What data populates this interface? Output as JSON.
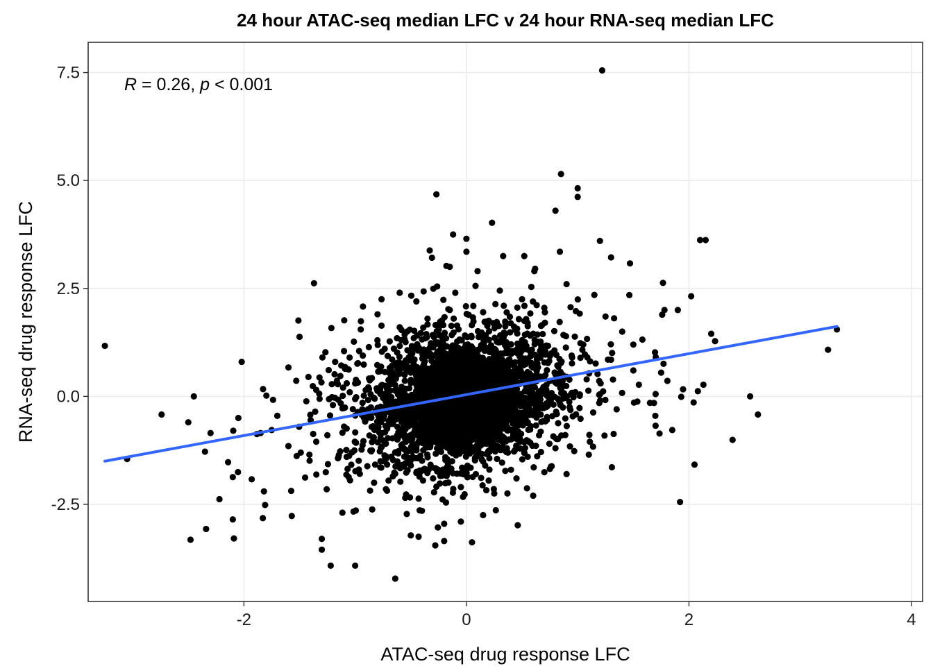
{
  "chart_data": {
    "type": "scatter",
    "title": "24 hour ATAC-seq median LFC v 24 hour RNA-seq median LFC",
    "xlabel": "ATAC-seq drug response LFC",
    "ylabel": "RNA-seq drug response LFC",
    "xlim": [
      -3.4,
      4.1
    ],
    "ylim": [
      -4.75,
      8.2
    ],
    "x_ticks": [
      -2,
      0,
      2,
      4
    ],
    "x_tick_labels": [
      "-2",
      "0",
      "2",
      "4"
    ],
    "y_ticks": [
      -2.5,
      0.0,
      2.5,
      5.0,
      7.5
    ],
    "y_tick_labels": [
      "-2.5",
      "0.0",
      "2.5",
      "5.0",
      "7.5"
    ],
    "annotation": {
      "r_symbol": "R",
      "r_text": " = 0.26, ",
      "p_symbol": "p",
      "p_text": " < 0.001"
    },
    "point_color": "#000000",
    "line_color": "#3366FF",
    "regression": {
      "x": [
        -3.25,
        3.33
      ],
      "y": [
        -1.5,
        1.62
      ]
    },
    "grid": true,
    "series": [
      {
        "values": [
          [
            1.22,
            7.55
          ],
          [
            -0.27,
            4.68
          ],
          [
            0.85,
            5.15
          ],
          [
            1.0,
            4.82
          ],
          [
            1.0,
            4.62
          ],
          [
            0.8,
            4.3
          ],
          [
            0.23,
            4.02
          ],
          [
            -0.12,
            3.75
          ],
          [
            0.0,
            3.65
          ],
          [
            1.2,
            3.6
          ],
          [
            2.1,
            3.62
          ],
          [
            2.15,
            3.62
          ],
          [
            -0.33,
            3.38
          ],
          [
            0.0,
            3.35
          ],
          [
            0.33,
            3.25
          ],
          [
            0.52,
            3.25
          ],
          [
            0.84,
            3.35
          ],
          [
            1.3,
            3.22
          ],
          [
            1.47,
            3.08
          ],
          [
            -0.18,
            3.02
          ],
          [
            -1.37,
            2.62
          ],
          [
            2.02,
            2.32
          ],
          [
            -0.93,
            2.08
          ],
          [
            -0.15,
            3.0
          ],
          [
            -3.25,
            1.17
          ],
          [
            -2.02,
            0.8
          ],
          [
            -2.45,
            0.0
          ],
          [
            -2.74,
            -0.42
          ],
          [
            -2.5,
            -0.6
          ],
          [
            -3.05,
            -1.45
          ],
          [
            -2.35,
            -1.28
          ],
          [
            -2.22,
            -2.38
          ],
          [
            -2.48,
            -3.32
          ],
          [
            -2.34,
            -3.07
          ],
          [
            -2.09,
            -3.29
          ],
          [
            -2.1,
            -2.85
          ],
          [
            -1.83,
            -2.82
          ],
          [
            -1.57,
            -2.77
          ],
          [
            -1.93,
            -1.92
          ],
          [
            -2.1,
            -1.87
          ],
          [
            -1.82,
            -2.2
          ],
          [
            -1.3,
            -3.3
          ],
          [
            -1.3,
            -3.55
          ],
          [
            -1.22,
            -3.92
          ],
          [
            -1.0,
            -3.92
          ],
          [
            -0.64,
            -4.22
          ],
          [
            -0.5,
            -3.22
          ],
          [
            -0.43,
            -3.25
          ],
          [
            -0.28,
            -3.45
          ],
          [
            -0.2,
            -3.35
          ],
          [
            0.05,
            -3.38
          ],
          [
            2.05,
            -1.58
          ],
          [
            2.55,
            0.0
          ],
          [
            2.62,
            -0.42
          ],
          [
            3.25,
            1.08
          ],
          [
            3.33,
            1.55
          ],
          [
            2.08,
            0.12
          ],
          [
            2.13,
            0.27
          ],
          [
            2.2,
            1.45
          ],
          [
            1.9,
            2.0
          ],
          [
            1.78,
            2.0
          ],
          [
            1.85,
            -0.78
          ],
          [
            1.7,
            -0.68
          ],
          [
            1.55,
            0.27
          ],
          [
            1.5,
            1.2
          ],
          [
            -1.75,
            -0.78
          ],
          [
            -1.6,
            0.67
          ],
          [
            -1.5,
            1.38
          ],
          [
            -1.42,
            0.45
          ],
          [
            -1.45,
            -1.88
          ],
          [
            -1.35,
            -1.05
          ],
          [
            -1.18,
            0.8
          ],
          [
            -1.05,
            0.9
          ],
          [
            -1.1,
            -0.7
          ],
          [
            -0.95,
            1.55
          ],
          [
            -0.85,
            -1.25
          ],
          [
            -0.83,
            -2.0
          ],
          [
            0.9,
            2.6
          ],
          [
            0.7,
            2.05
          ],
          [
            0.55,
            1.7
          ],
          [
            1.15,
            2.35
          ],
          [
            1.25,
            1.85
          ],
          [
            1.4,
            1.5
          ],
          [
            1.05,
            1.2
          ],
          [
            1.1,
            -1.35
          ],
          [
            0.9,
            -1.8
          ],
          [
            0.75,
            -1.68
          ],
          [
            0.6,
            -2.3
          ],
          [
            0.45,
            -1.9
          ],
          [
            0.25,
            -2.25
          ],
          [
            0.15,
            -2.75
          ],
          [
            -0.05,
            -2.9
          ],
          [
            -0.2,
            -2.95
          ],
          [
            -0.4,
            -2.65
          ],
          [
            -0.55,
            -2.35
          ],
          [
            -0.7,
            -1.95
          ],
          [
            -1.15,
            -1.4
          ],
          [
            -1.25,
            -0.9
          ],
          [
            -1.4,
            -0.55
          ],
          [
            -1.6,
            -1.15
          ],
          [
            -1.7,
            -0.45
          ],
          [
            -1.85,
            -0.85
          ],
          [
            -2.05,
            -0.5
          ],
          [
            -2.3,
            -0.85
          ],
          [
            -1.35,
            0.15
          ],
          [
            -1.2,
            -0.2
          ],
          [
            -1.0,
            0.3
          ],
          [
            1.2,
            0.05
          ],
          [
            1.35,
            -0.3
          ],
          [
            1.5,
            0.6
          ],
          [
            1.65,
            -0.15
          ],
          [
            1.75,
            0.55
          ],
          [
            1.3,
            0.85
          ],
          [
            0.95,
            0.9
          ],
          [
            -0.6,
            2.4
          ],
          [
            -0.45,
            2.2
          ],
          [
            -0.1,
            2.4
          ],
          [
            0.1,
            2.9
          ],
          [
            0.3,
            2.45
          ],
          [
            0.5,
            2.25
          ],
          [
            -0.8,
            1.3
          ],
          [
            -0.75,
            -1.5
          ],
          [
            0.8,
            -1.2
          ],
          [
            0.6,
            1.45
          ],
          [
            -0.6,
            1.6
          ],
          [
            -0.5,
            -1.6
          ],
          [
            0.4,
            -1.7
          ],
          [
            0.35,
            1.7
          ],
          [
            -0.35,
            1.8
          ],
          [
            -0.3,
            -1.9
          ],
          [
            0.2,
            -1.95
          ],
          [
            0.15,
            1.95
          ],
          [
            -0.15,
            2.0
          ],
          [
            -0.05,
            -2.1
          ]
        ]
      }
    ]
  }
}
